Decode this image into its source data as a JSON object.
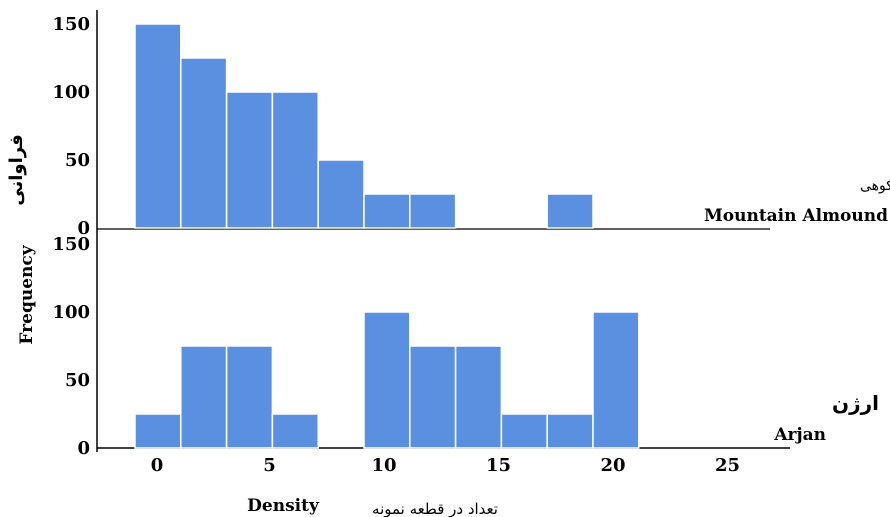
{
  "chart_data": {
    "type": "bar",
    "x_axis": {
      "label": "Density",
      "label_fa": "تعداد در قطعه نمونه",
      "ticks": [
        0,
        5,
        10,
        15,
        20,
        25
      ]
    },
    "y_axis": {
      "label": "Frequency",
      "label_fa": "فراوانی",
      "ticks": [
        0,
        50,
        100,
        150
      ],
      "ylim": [
        0,
        150
      ]
    },
    "panels": [
      {
        "name_fa": "بادام کوهی",
        "name": "Mountain Almound",
        "bins": [
          {
            "x0": 0,
            "x1": 2,
            "count": 150
          },
          {
            "x0": 2,
            "x1": 4,
            "count": 125
          },
          {
            "x0": 4,
            "x1": 6,
            "count": 100
          },
          {
            "x0": 6,
            "x1": 8,
            "count": 100
          },
          {
            "x0": 8,
            "x1": 10,
            "count": 50
          },
          {
            "x0": 10,
            "x1": 12,
            "count": 25
          },
          {
            "x0": 12,
            "x1": 14,
            "count": 25
          },
          {
            "x0": 18,
            "x1": 20,
            "count": 25
          }
        ]
      },
      {
        "name_fa": "ارژن",
        "name": "Arjan",
        "bins": [
          {
            "x0": 0,
            "x1": 2,
            "count": 25
          },
          {
            "x0": 2,
            "x1": 4,
            "count": 75
          },
          {
            "x0": 4,
            "x1": 6,
            "count": 75
          },
          {
            "x0": 6,
            "x1": 8,
            "count": 25
          },
          {
            "x0": 10,
            "x1": 12,
            "count": 100
          },
          {
            "x0": 12,
            "x1": 14,
            "count": 75
          },
          {
            "x0": 14,
            "x1": 16,
            "count": 75
          },
          {
            "x0": 16,
            "x1": 18,
            "count": 25
          },
          {
            "x0": 18,
            "x1": 20,
            "count": 25
          },
          {
            "x0": 20,
            "x1": 22,
            "count": 100
          }
        ]
      }
    ]
  }
}
